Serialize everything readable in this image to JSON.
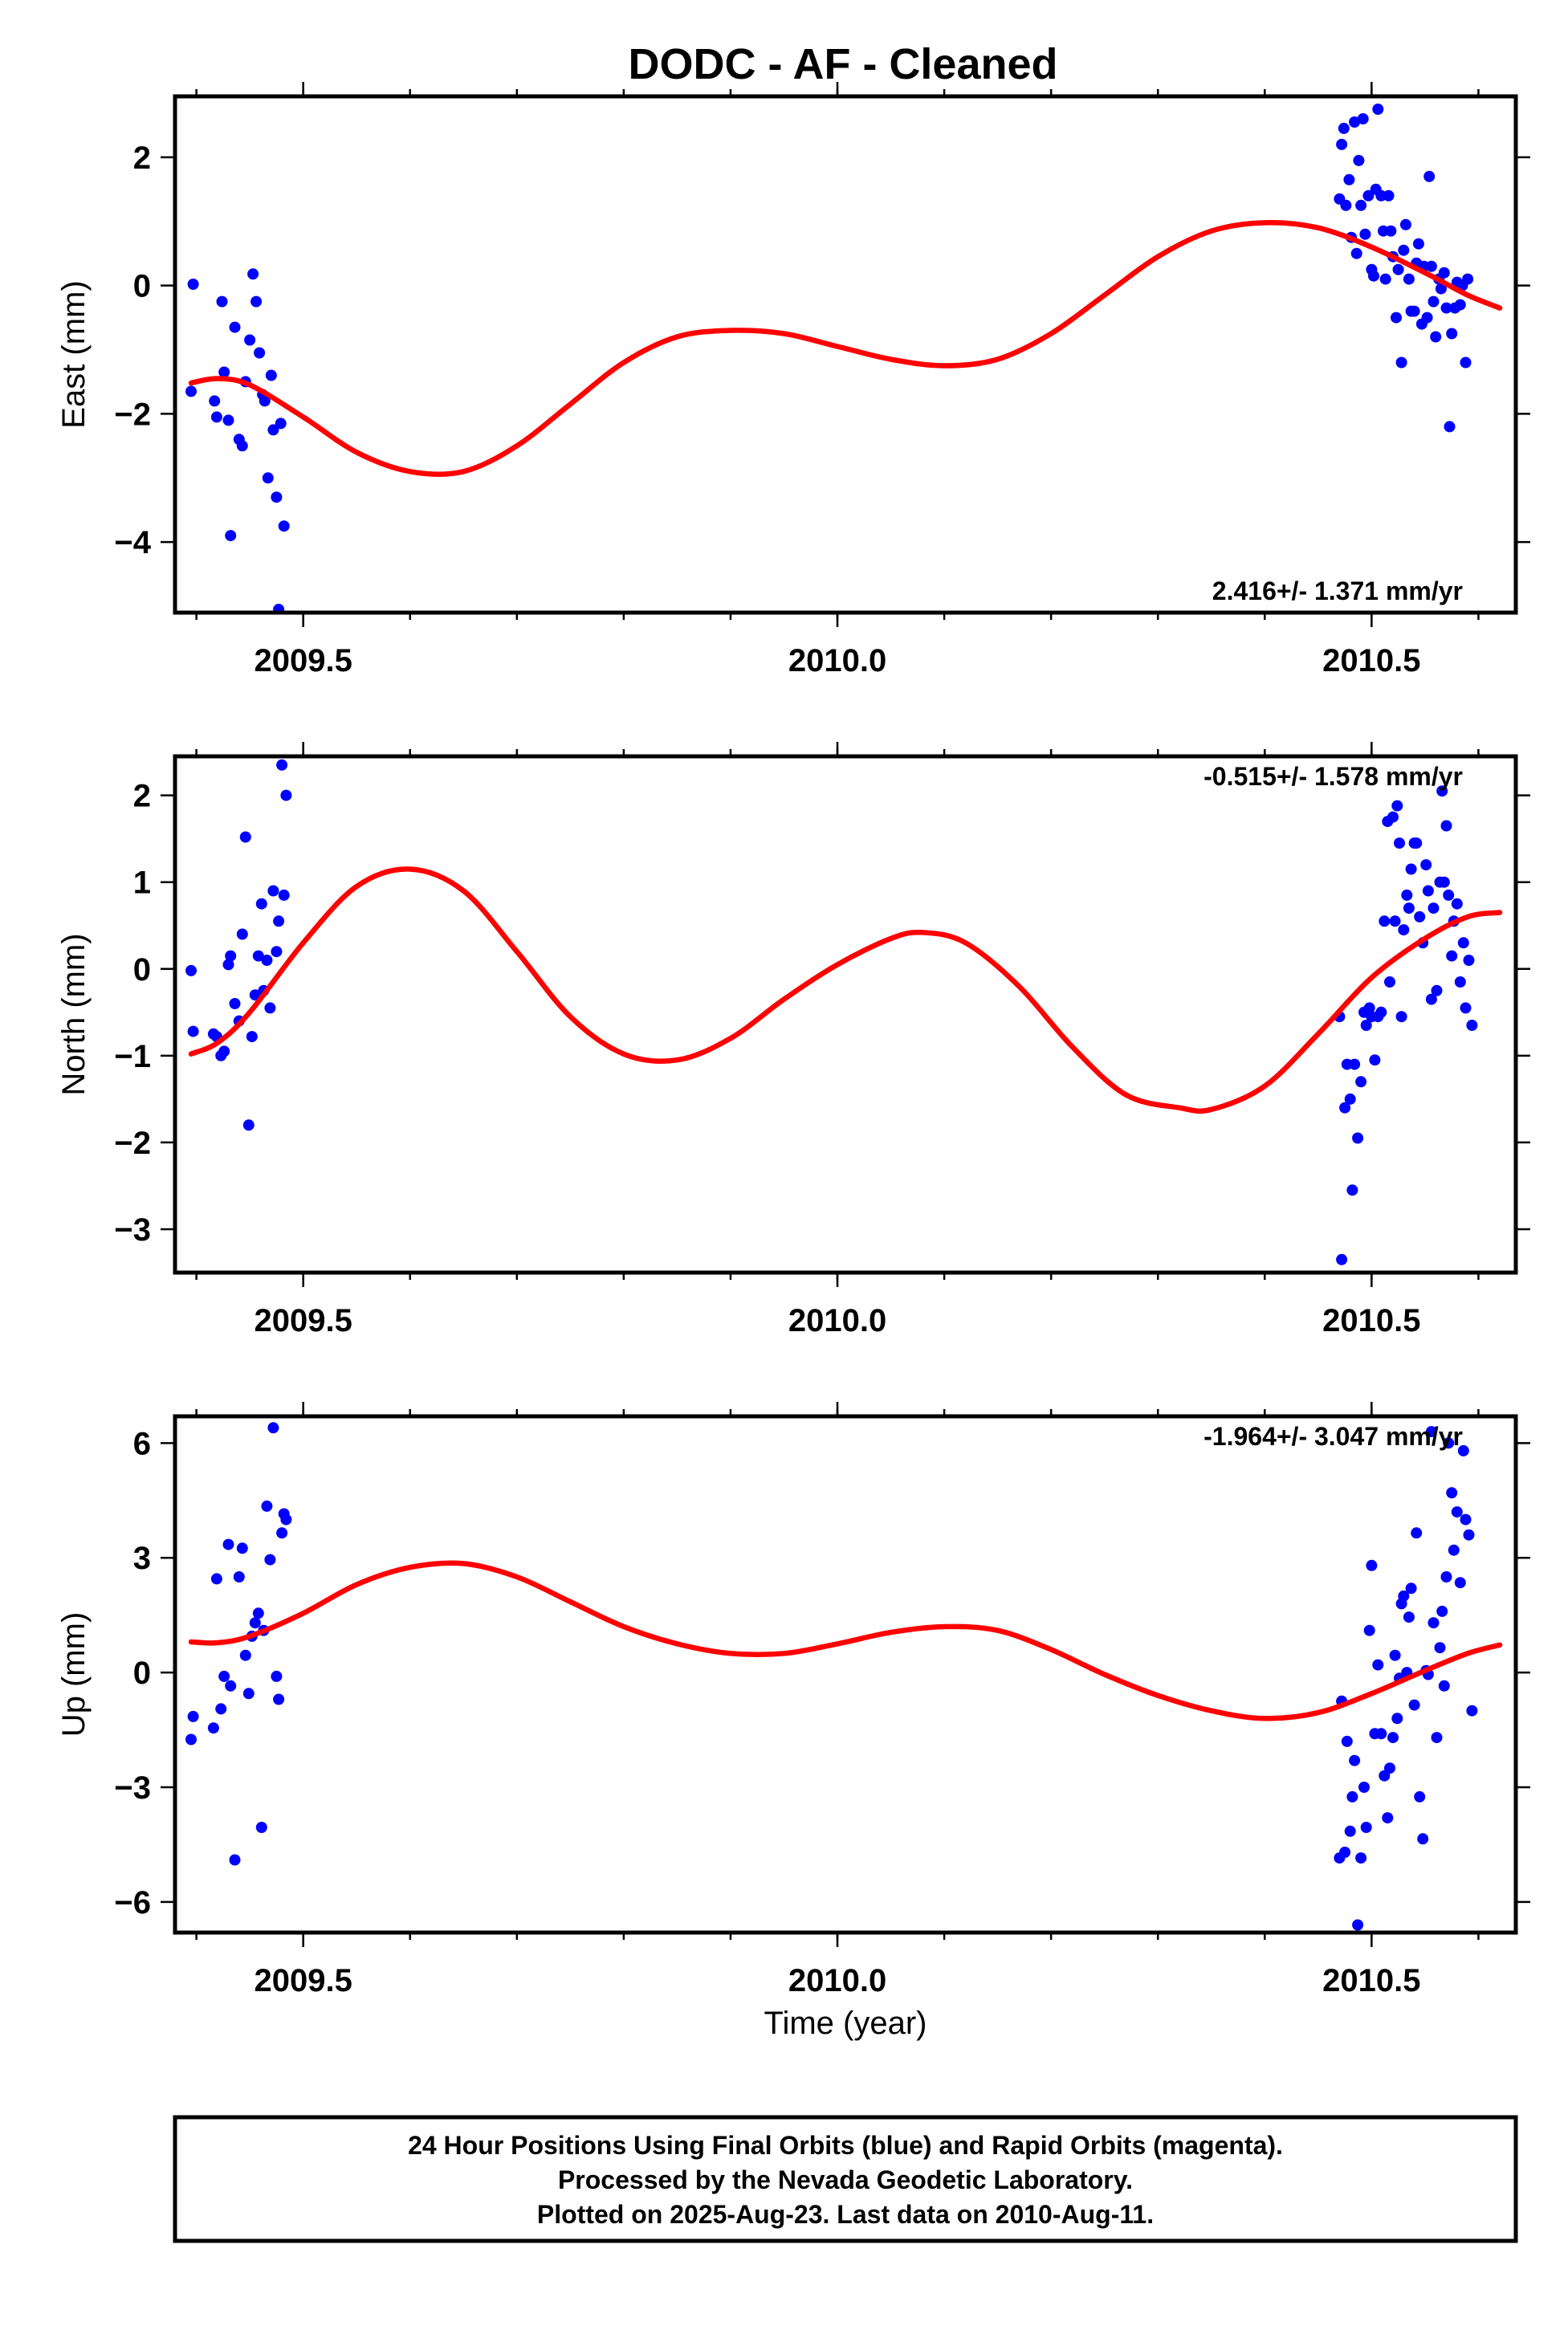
{
  "title": "DODC  - AF - Cleaned",
  "xlabel": "Time (year)",
  "footer": {
    "line1": "24 Hour Positions Using Final Orbits (blue) and Rapid Orbits (magenta).",
    "line2": "Processed by the Nevada Geodetic Laboratory.",
    "line3": "Plotted on 2025-Aug-23. Last data on 2010-Aug-11."
  },
  "colors": {
    "points": "#0000ff",
    "fit": "#ff0000",
    "frame": "#000000"
  },
  "chart_data": [
    {
      "type": "scatter",
      "ylabel": "East (mm)",
      "rate": "2.416+/- 1.371 mm/yr",
      "xlim": [
        2009.38,
        2010.635
      ],
      "ylim": [
        -5.1,
        2.95
      ],
      "xticks": [
        "2009.5",
        "2010.0",
        "2010.5"
      ],
      "xtick_values": [
        2009.5,
        2010.0,
        2010.5
      ],
      "yticks": [
        "2",
        "0",
        "−2",
        "−4"
      ],
      "ytick_values": [
        2,
        0,
        -2,
        -4
      ],
      "points": [
        [
          2009.395,
          -1.65
        ],
        [
          2009.397,
          0.02
        ],
        [
          2009.417,
          -1.8
        ],
        [
          2009.419,
          -2.05
        ],
        [
          2009.424,
          -0.25
        ],
        [
          2009.426,
          -1.35
        ],
        [
          2009.43,
          -2.1
        ],
        [
          2009.432,
          -3.9
        ],
        [
          2009.436,
          -0.65
        ],
        [
          2009.44,
          -2.4
        ],
        [
          2009.443,
          -2.5
        ],
        [
          2009.446,
          -1.5
        ],
        [
          2009.45,
          -0.85
        ],
        [
          2009.453,
          0.18
        ],
        [
          2009.456,
          -0.25
        ],
        [
          2009.459,
          -1.05
        ],
        [
          2009.462,
          -1.7
        ],
        [
          2009.464,
          -1.8
        ],
        [
          2009.467,
          -3.0
        ],
        [
          2009.47,
          -1.4
        ],
        [
          2009.472,
          -2.25
        ],
        [
          2009.475,
          -3.3
        ],
        [
          2009.477,
          -5.05
        ],
        [
          2009.479,
          -2.15
        ],
        [
          2009.482,
          -3.75
        ],
        [
          2010.47,
          1.35
        ],
        [
          2010.472,
          2.2
        ],
        [
          2010.474,
          2.45
        ],
        [
          2010.476,
          1.25
        ],
        [
          2010.479,
          1.65
        ],
        [
          2010.481,
          0.75
        ],
        [
          2010.484,
          2.55
        ],
        [
          2010.486,
          0.5
        ],
        [
          2010.488,
          1.95
        ],
        [
          2010.49,
          1.25
        ],
        [
          2010.492,
          2.6
        ],
        [
          2010.494,
          0.8
        ],
        [
          2010.497,
          1.4
        ],
        [
          2010.5,
          0.25
        ],
        [
          2010.502,
          0.15
        ],
        [
          2010.504,
          1.5
        ],
        [
          2010.506,
          2.75
        ],
        [
          2010.509,
          1.4
        ],
        [
          2010.511,
          0.85
        ],
        [
          2010.513,
          0.1
        ],
        [
          2010.516,
          1.4
        ],
        [
          2010.518,
          0.85
        ],
        [
          2010.52,
          0.45
        ],
        [
          2010.523,
          -0.5
        ],
        [
          2010.525,
          0.25
        ],
        [
          2010.528,
          -1.2
        ],
        [
          2010.53,
          0.55
        ],
        [
          2010.532,
          0.95
        ],
        [
          2010.535,
          0.1
        ],
        [
          2010.537,
          -0.4
        ],
        [
          2010.54,
          -0.4
        ],
        [
          2010.542,
          0.35
        ],
        [
          2010.544,
          0.65
        ],
        [
          2010.547,
          -0.6
        ],
        [
          2010.549,
          0.3
        ],
        [
          2010.552,
          -0.5
        ],
        [
          2010.554,
          1.7
        ],
        [
          2010.556,
          0.3
        ],
        [
          2010.558,
          -0.25
        ],
        [
          2010.56,
          -0.8
        ],
        [
          2010.563,
          0.1
        ],
        [
          2010.565,
          -0.05
        ],
        [
          2010.568,
          0.2
        ],
        [
          2010.57,
          -0.35
        ],
        [
          2010.573,
          -2.2
        ],
        [
          2010.575,
          -0.75
        ],
        [
          2010.578,
          -0.35
        ],
        [
          2010.58,
          0.05
        ],
        [
          2010.583,
          -0.3
        ],
        [
          2010.585,
          0.0
        ],
        [
          2010.588,
          -1.2
        ],
        [
          2010.59,
          0.1
        ]
      ],
      "fit": [
        [
          2009.395,
          -1.52
        ],
        [
          2009.42,
          -1.45
        ],
        [
          2009.45,
          -1.55
        ],
        [
          2009.5,
          -2.05
        ],
        [
          2009.55,
          -2.6
        ],
        [
          2009.6,
          -2.9
        ],
        [
          2009.65,
          -2.9
        ],
        [
          2009.7,
          -2.5
        ],
        [
          2009.75,
          -1.85
        ],
        [
          2009.8,
          -1.2
        ],
        [
          2009.85,
          -0.8
        ],
        [
          2009.9,
          -0.7
        ],
        [
          2009.95,
          -0.75
        ],
        [
          2010.0,
          -0.95
        ],
        [
          2010.05,
          -1.15
        ],
        [
          2010.1,
          -1.25
        ],
        [
          2010.15,
          -1.15
        ],
        [
          2010.2,
          -0.75
        ],
        [
          2010.25,
          -0.15
        ],
        [
          2010.3,
          0.45
        ],
        [
          2010.35,
          0.85
        ],
        [
          2010.4,
          0.98
        ],
        [
          2010.45,
          0.9
        ],
        [
          2010.5,
          0.6
        ],
        [
          2010.55,
          0.2
        ],
        [
          2010.59,
          -0.15
        ],
        [
          2010.62,
          -0.35
        ]
      ]
    },
    {
      "type": "scatter",
      "ylabel": "North (mm)",
      "rate": "-0.515+/- 1.578 mm/yr",
      "xlim": [
        2009.38,
        2010.635
      ],
      "ylim": [
        -3.5,
        2.45
      ],
      "xticks": [
        "2009.5",
        "2010.0",
        "2010.5"
      ],
      "xtick_values": [
        2009.5,
        2010.0,
        2010.5
      ],
      "yticks": [
        "2",
        "1",
        "0",
        "−1",
        "−2",
        "−3"
      ],
      "ytick_values": [
        2,
        1,
        0,
        -1,
        -2,
        -3
      ],
      "points": [
        [
          2009.395,
          -0.02
        ],
        [
          2009.397,
          -0.72
        ],
        [
          2009.416,
          -0.75
        ],
        [
          2009.419,
          -0.78
        ],
        [
          2009.423,
          -1.0
        ],
        [
          2009.426,
          -0.95
        ],
        [
          2009.43,
          0.05
        ],
        [
          2009.432,
          0.15
        ],
        [
          2009.436,
          -0.4
        ],
        [
          2009.44,
          -0.6
        ],
        [
          2009.443,
          0.4
        ],
        [
          2009.446,
          1.52
        ],
        [
          2009.449,
          -1.8
        ],
        [
          2009.452,
          -0.78
        ],
        [
          2009.455,
          -0.3
        ],
        [
          2009.458,
          0.15
        ],
        [
          2009.461,
          0.75
        ],
        [
          2009.463,
          -0.25
        ],
        [
          2009.466,
          0.1
        ],
        [
          2009.469,
          -0.45
        ],
        [
          2009.472,
          0.9
        ],
        [
          2009.475,
          0.2
        ],
        [
          2009.477,
          0.55
        ],
        [
          2009.48,
          2.35
        ],
        [
          2009.482,
          0.85
        ],
        [
          2009.484,
          2.0
        ],
        [
          2010.47,
          -0.55
        ],
        [
          2010.472,
          -3.35
        ],
        [
          2010.475,
          -1.6
        ],
        [
          2010.477,
          -1.1
        ],
        [
          2010.48,
          -1.5
        ],
        [
          2010.482,
          -2.55
        ],
        [
          2010.484,
          -1.1
        ],
        [
          2010.487,
          -1.95
        ],
        [
          2010.49,
          -1.3
        ],
        [
          2010.493,
          -0.5
        ],
        [
          2010.495,
          -0.65
        ],
        [
          2010.498,
          -0.45
        ],
        [
          2010.5,
          -0.55
        ],
        [
          2010.503,
          -1.05
        ],
        [
          2010.506,
          -0.55
        ],
        [
          2010.509,
          -0.5
        ],
        [
          2010.512,
          0.55
        ],
        [
          2010.515,
          1.7
        ],
        [
          2010.517,
          -0.15
        ],
        [
          2010.52,
          1.75
        ],
        [
          2010.522,
          0.55
        ],
        [
          2010.524,
          1.88
        ],
        [
          2010.526,
          1.45
        ],
        [
          2010.528,
          -0.55
        ],
        [
          2010.53,
          0.45
        ],
        [
          2010.533,
          0.85
        ],
        [
          2010.535,
          0.7
        ],
        [
          2010.537,
          1.15
        ],
        [
          2010.54,
          1.45
        ],
        [
          2010.542,
          1.45
        ],
        [
          2010.545,
          0.6
        ],
        [
          2010.548,
          0.3
        ],
        [
          2010.551,
          1.2
        ],
        [
          2010.553,
          0.9
        ],
        [
          2010.556,
          -0.35
        ],
        [
          2010.558,
          0.7
        ],
        [
          2010.561,
          -0.25
        ],
        [
          2010.564,
          1.0
        ],
        [
          2010.566,
          2.05
        ],
        [
          2010.568,
          1.0
        ],
        [
          2010.57,
          1.65
        ],
        [
          2010.572,
          0.85
        ],
        [
          2010.575,
          0.15
        ],
        [
          2010.577,
          0.55
        ],
        [
          2010.58,
          0.75
        ],
        [
          2010.583,
          -0.15
        ],
        [
          2010.586,
          0.3
        ],
        [
          2010.588,
          -0.45
        ],
        [
          2010.591,
          0.1
        ],
        [
          2010.594,
          -0.65
        ]
      ],
      "fit": [
        [
          2009.395,
          -0.98
        ],
        [
          2009.42,
          -0.85
        ],
        [
          2009.45,
          -0.5
        ],
        [
          2009.5,
          0.3
        ],
        [
          2009.55,
          0.95
        ],
        [
          2009.6,
          1.15
        ],
        [
          2009.65,
          0.9
        ],
        [
          2009.7,
          0.2
        ],
        [
          2009.75,
          -0.55
        ],
        [
          2009.8,
          -0.98
        ],
        [
          2009.85,
          -1.05
        ],
        [
          2009.9,
          -0.8
        ],
        [
          2009.95,
          -0.35
        ],
        [
          2010.0,
          0.05
        ],
        [
          2010.05,
          0.35
        ],
        [
          2010.08,
          0.42
        ],
        [
          2010.12,
          0.3
        ],
        [
          2010.17,
          -0.2
        ],
        [
          2010.22,
          -0.9
        ],
        [
          2010.27,
          -1.45
        ],
        [
          2010.32,
          -1.6
        ],
        [
          2010.35,
          -1.62
        ],
        [
          2010.4,
          -1.35
        ],
        [
          2010.45,
          -0.75
        ],
        [
          2010.5,
          -0.1
        ],
        [
          2010.55,
          0.35
        ],
        [
          2010.59,
          0.6
        ],
        [
          2010.62,
          0.65
        ]
      ]
    },
    {
      "type": "scatter",
      "ylabel": "Up (mm)",
      "rate": "-1.964+/- 3.047 mm/yr",
      "xlim": [
        2009.38,
        2010.635
      ],
      "ylim": [
        -6.8,
        6.7
      ],
      "xticks": [
        "2009.5",
        "2010.0",
        "2010.5"
      ],
      "xtick_values": [
        2009.5,
        2010.0,
        2010.5
      ],
      "yticks": [
        "6",
        "3",
        "0",
        "−3",
        "−6"
      ],
      "ytick_values": [
        6,
        3,
        0,
        -3,
        -6
      ],
      "points": [
        [
          2009.395,
          -1.75
        ],
        [
          2009.397,
          -1.15
        ],
        [
          2009.416,
          -1.45
        ],
        [
          2009.419,
          2.45
        ],
        [
          2009.423,
          -0.95
        ],
        [
          2009.426,
          -0.1
        ],
        [
          2009.43,
          3.35
        ],
        [
          2009.432,
          -0.35
        ],
        [
          2009.436,
          -4.9
        ],
        [
          2009.44,
          2.5
        ],
        [
          2009.443,
          3.25
        ],
        [
          2009.446,
          0.45
        ],
        [
          2009.449,
          -0.55
        ],
        [
          2009.452,
          0.95
        ],
        [
          2009.455,
          1.3
        ],
        [
          2009.458,
          1.55
        ],
        [
          2009.461,
          -4.05
        ],
        [
          2009.463,
          1.1
        ],
        [
          2009.466,
          4.35
        ],
        [
          2009.469,
          2.95
        ],
        [
          2009.472,
          6.4
        ],
        [
          2009.475,
          -0.1
        ],
        [
          2009.477,
          -0.7
        ],
        [
          2009.48,
          3.65
        ],
        [
          2009.482,
          4.15
        ],
        [
          2009.484,
          4.0
        ],
        [
          2010.47,
          -4.85
        ],
        [
          2010.472,
          -0.75
        ],
        [
          2010.475,
          -4.7
        ],
        [
          2010.477,
          -1.8
        ],
        [
          2010.48,
          -4.15
        ],
        [
          2010.482,
          -3.25
        ],
        [
          2010.484,
          -2.3
        ],
        [
          2010.487,
          -6.6
        ],
        [
          2010.49,
          -4.85
        ],
        [
          2010.493,
          -3.0
        ],
        [
          2010.495,
          -4.05
        ],
        [
          2010.498,
          1.1
        ],
        [
          2010.5,
          2.8
        ],
        [
          2010.503,
          -1.6
        ],
        [
          2010.506,
          0.2
        ],
        [
          2010.509,
          -1.6
        ],
        [
          2010.512,
          -2.7
        ],
        [
          2010.515,
          -3.8
        ],
        [
          2010.517,
          -2.5
        ],
        [
          2010.52,
          -1.7
        ],
        [
          2010.522,
          0.45
        ],
        [
          2010.524,
          -1.2
        ],
        [
          2010.526,
          -0.15
        ],
        [
          2010.528,
          1.8
        ],
        [
          2010.53,
          2.0
        ],
        [
          2010.533,
          0.0
        ],
        [
          2010.535,
          1.45
        ],
        [
          2010.537,
          2.2
        ],
        [
          2010.54,
          -0.85
        ],
        [
          2010.542,
          3.65
        ],
        [
          2010.545,
          -3.25
        ],
        [
          2010.548,
          -4.35
        ],
        [
          2010.551,
          0.05
        ],
        [
          2010.553,
          -0.05
        ],
        [
          2010.556,
          6.3
        ],
        [
          2010.558,
          1.3
        ],
        [
          2010.561,
          -1.7
        ],
        [
          2010.564,
          0.65
        ],
        [
          2010.566,
          1.6
        ],
        [
          2010.568,
          -0.35
        ],
        [
          2010.57,
          2.5
        ],
        [
          2010.572,
          6.0
        ],
        [
          2010.575,
          4.7
        ],
        [
          2010.577,
          3.2
        ],
        [
          2010.58,
          4.2
        ],
        [
          2010.583,
          2.35
        ],
        [
          2010.586,
          5.8
        ],
        [
          2010.588,
          4.0
        ],
        [
          2010.591,
          3.6
        ],
        [
          2010.594,
          -1.0
        ]
      ],
      "fit": [
        [
          2009.395,
          0.8
        ],
        [
          2009.42,
          0.78
        ],
        [
          2009.45,
          0.95
        ],
        [
          2009.5,
          1.55
        ],
        [
          2009.55,
          2.3
        ],
        [
          2009.6,
          2.75
        ],
        [
          2009.65,
          2.85
        ],
        [
          2009.7,
          2.5
        ],
        [
          2009.75,
          1.85
        ],
        [
          2009.8,
          1.2
        ],
        [
          2009.85,
          0.75
        ],
        [
          2009.9,
          0.5
        ],
        [
          2009.95,
          0.5
        ],
        [
          2010.0,
          0.75
        ],
        [
          2010.05,
          1.05
        ],
        [
          2010.1,
          1.2
        ],
        [
          2010.15,
          1.1
        ],
        [
          2010.2,
          0.6
        ],
        [
          2010.25,
          -0.05
        ],
        [
          2010.3,
          -0.6
        ],
        [
          2010.35,
          -1.0
        ],
        [
          2010.4,
          -1.2
        ],
        [
          2010.45,
          -1.05
        ],
        [
          2010.5,
          -0.55
        ],
        [
          2010.55,
          0.05
        ],
        [
          2010.59,
          0.5
        ],
        [
          2010.62,
          0.72
        ]
      ]
    }
  ]
}
